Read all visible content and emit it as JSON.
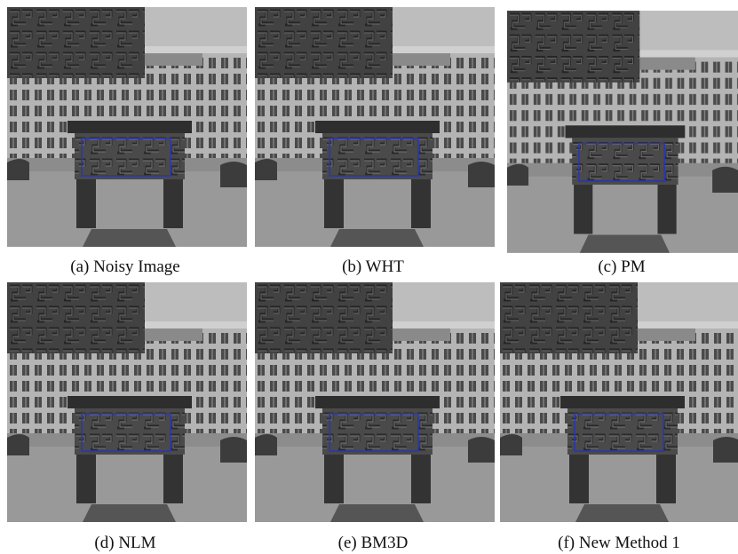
{
  "panels": [
    {
      "caption": "(a) Noisy Image"
    },
    {
      "caption": "(b) WHT"
    },
    {
      "caption": "(c) PM"
    },
    {
      "caption": "(d) NLM"
    },
    {
      "caption": "(e) BM3D"
    },
    {
      "caption": "(f) New Method 1"
    }
  ]
}
